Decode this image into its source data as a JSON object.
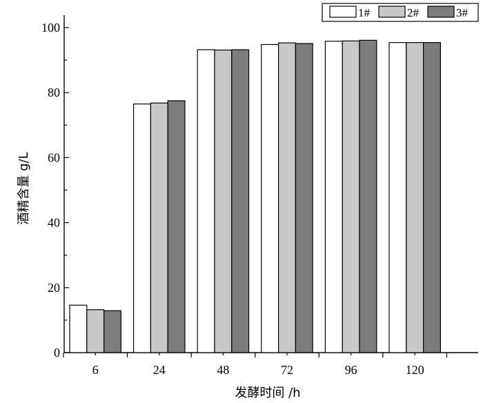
{
  "chart_data": {
    "type": "bar",
    "xlabel": "发酵时间 /h",
    "ylabel": "酒精含量 g/L",
    "categories": [
      "6",
      "24",
      "48",
      "72",
      "96",
      "120"
    ],
    "series": [
      {
        "name": "1#",
        "values": [
          14.6,
          76.5,
          93.2,
          94.8,
          95.8,
          95.4
        ]
      },
      {
        "name": "2#",
        "values": [
          13.2,
          76.8,
          93.1,
          95.3,
          95.9,
          95.4
        ]
      },
      {
        "name": "3#",
        "values": [
          12.9,
          77.5,
          93.2,
          95.1,
          96.1,
          95.4
        ]
      }
    ],
    "ylim": [
      0,
      100
    ],
    "yticks": [
      0,
      20,
      40,
      60,
      80,
      100
    ],
    "grid": false,
    "legend_position": "top-right",
    "series_colors": [
      "#ffffff",
      "#c8c8c8",
      "#7c7c7c"
    ]
  }
}
